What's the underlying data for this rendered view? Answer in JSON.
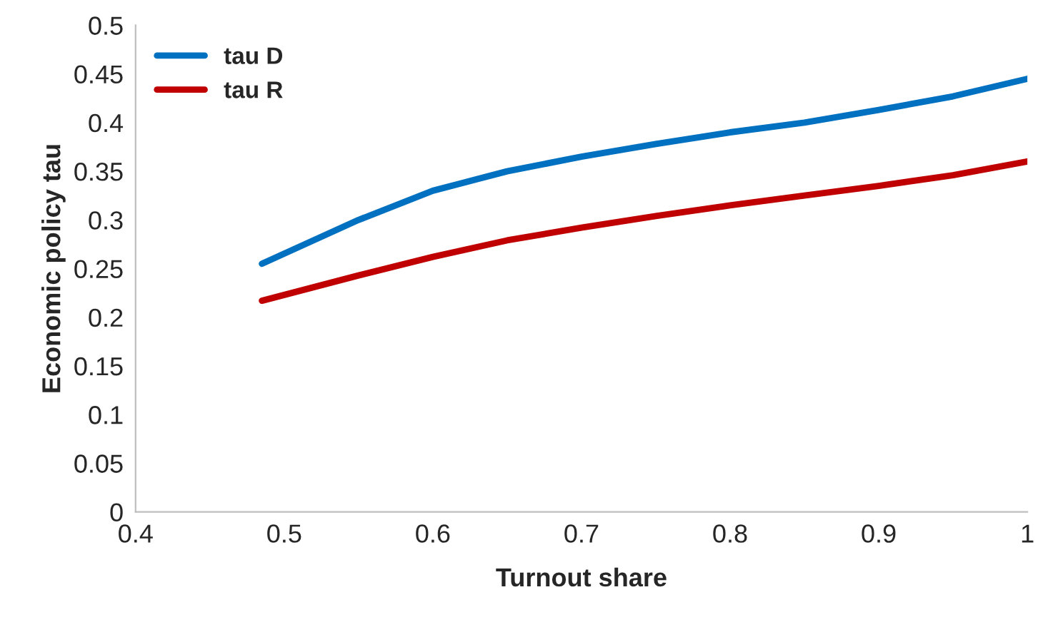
{
  "chart_data": {
    "type": "line",
    "xlabel": "Turnout share",
    "ylabel": "Economic policy tau",
    "x": [
      0.485,
      0.55,
      0.6,
      0.65,
      0.7,
      0.75,
      0.8,
      0.85,
      0.9,
      0.95,
      1.0
    ],
    "series": [
      {
        "name": "tau D",
        "color": "#0070c0",
        "values": [
          0.255,
          0.3,
          0.33,
          0.35,
          0.365,
          0.378,
          0.39,
          0.4,
          0.413,
          0.427,
          0.445
        ]
      },
      {
        "name": "tau R",
        "color": "#c00000",
        "values": [
          0.217,
          0.243,
          0.262,
          0.279,
          0.292,
          0.304,
          0.315,
          0.325,
          0.335,
          0.346,
          0.36
        ]
      }
    ],
    "xlim": [
      0.4,
      1.0
    ],
    "xticks": [
      0.4,
      0.5,
      0.6,
      0.7,
      0.8,
      0.9,
      1
    ],
    "ylim": [
      0,
      0.5
    ],
    "yticks": [
      0,
      0.05,
      0.1,
      0.15,
      0.2,
      0.25,
      0.3,
      0.35,
      0.4,
      0.45,
      0.5
    ],
    "grid": false,
    "legend": "top left",
    "marker": "none",
    "line_style": "solid"
  }
}
